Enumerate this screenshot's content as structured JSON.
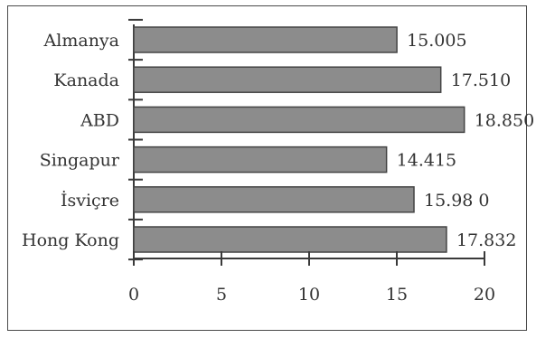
{
  "chart_data": {
    "type": "bar",
    "orientation": "horizontal",
    "categories": [
      "Almanya",
      "Kanada",
      "ABD",
      "Singapur",
      "İsviçre",
      "Hong Kong"
    ],
    "values": [
      15.005,
      17.51,
      18.85,
      14.415,
      15.98,
      17.832
    ],
    "value_labels": [
      "15.005",
      "17.510",
      "18.850",
      "14.415",
      "15.98 0",
      "17.832"
    ],
    "xticks": [
      "0",
      "5",
      "10",
      "15",
      "20"
    ],
    "xlim": [
      0,
      20
    ],
    "title": "",
    "xlabel": "",
    "ylabel": "",
    "grid": false,
    "bar_color": "#8c8c8c",
    "bar_edge_color": "#444444"
  }
}
